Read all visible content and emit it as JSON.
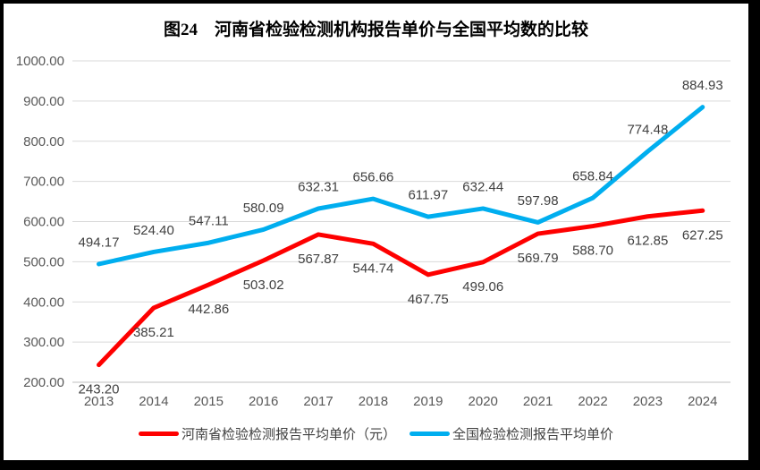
{
  "chart_data": {
    "type": "line",
    "title": "图24　河南省检验检测机构报告单价与全国平均数的比较",
    "x": [
      "2013",
      "2014",
      "2015",
      "2016",
      "2017",
      "2018",
      "2019",
      "2020",
      "2021",
      "2022",
      "2023",
      "2024"
    ],
    "series": [
      {
        "id": "henan",
        "name": "河南省检验检测报告平均单价（元）",
        "color": "#FE0000",
        "label_side": "below",
        "values": [
          243.2,
          385.21,
          442.86,
          503.02,
          567.87,
          544.74,
          467.75,
          499.06,
          569.79,
          588.7,
          612.85,
          627.25
        ]
      },
      {
        "id": "national",
        "name": "全国检验检测报告平均单价",
        "color": "#00AEEF",
        "label_side": "above",
        "values": [
          494.17,
          524.4,
          547.11,
          580.09,
          632.31,
          656.66,
          611.97,
          632.44,
          597.98,
          658.84,
          774.48,
          884.93
        ]
      }
    ],
    "xlabel": "",
    "ylabel": "",
    "ylim": [
      200,
      1000
    ],
    "ytick_step": 100,
    "ytick_format": "2-decimals",
    "grid": true,
    "legend_position": "bottom"
  },
  "styles": {
    "background": "#FFFFFF",
    "frame_border": "#000000",
    "gridline": "#D9D9D9",
    "axis_line": "#BFBFBF",
    "tick_text": "#595959",
    "label_text": "#404040",
    "legend_text": "#404040",
    "title_text": "#000000"
  }
}
